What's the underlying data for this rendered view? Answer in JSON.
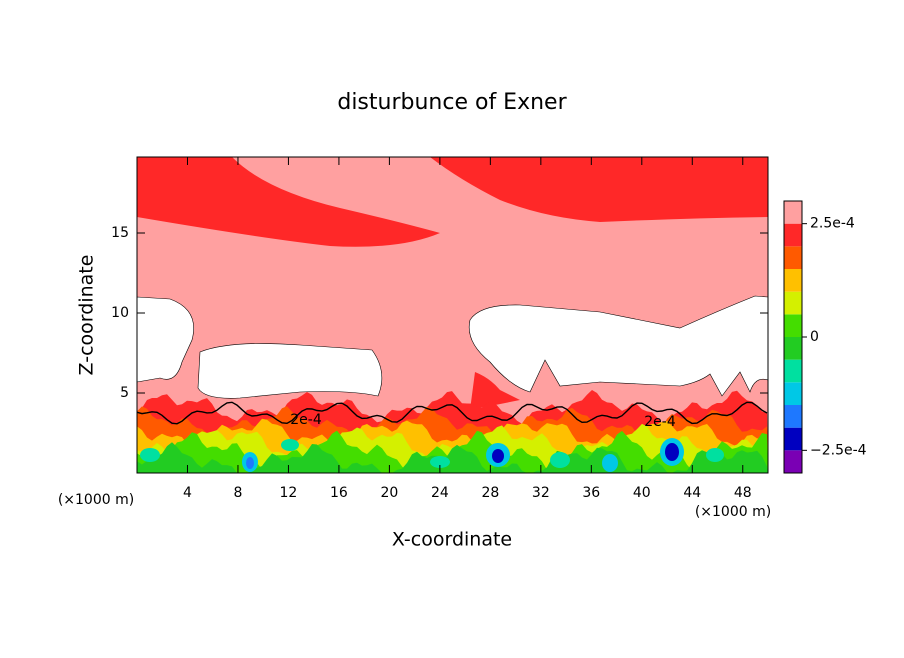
{
  "chart_data": {
    "type": "contour",
    "title": "disturbunce of Exner",
    "x_label": "X-coordinate",
    "y_label": "Z-coordinate",
    "x_unit_label": "(×1000 m)",
    "xlim": [
      0,
      50
    ],
    "ylim": [
      0,
      19.75
    ],
    "xticks": [
      4,
      8,
      12,
      16,
      20,
      24,
      28,
      32,
      36,
      40,
      44,
      48
    ],
    "yticks": [
      5,
      10,
      15
    ],
    "colorbar": {
      "lim": [
        -0.0003,
        0.0003
      ],
      "ticks": [
        {
          "value": 0.00025,
          "label": "2.5e-4"
        },
        0,
        {
          "value": -0.00025,
          "label": "−2.5e-4"
        }
      ],
      "colors": [
        "#7a00b4",
        "#0000c0",
        "#1e78ff",
        "#00c8e6",
        "#00e0a0",
        "#22cc22",
        "#44dd00",
        "#d4f000",
        "#ffc000",
        "#ff5a00",
        "#ff2828",
        "#ffa0a0"
      ]
    },
    "contour_labels": [
      "2e-4",
      "2e-4"
    ]
  }
}
